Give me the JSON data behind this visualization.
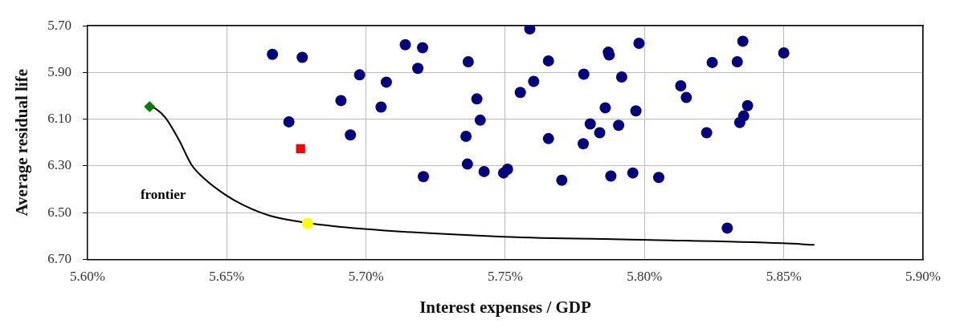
{
  "chart_data": {
    "type": "scatter",
    "xlabel": "Interest expenses / GDP",
    "ylabel": "Average residual life",
    "xlim": [
      5.6,
      5.9
    ],
    "xticks": [
      {
        "value": 5.6,
        "label": "5.60%"
      },
      {
        "value": 5.65,
        "label": "5.65%"
      },
      {
        "value": 5.7,
        "label": "5.70%"
      },
      {
        "value": 5.75,
        "label": "5.75%"
      },
      {
        "value": 5.8,
        "label": "5.80%"
      },
      {
        "value": 5.85,
        "label": "5.85%"
      },
      {
        "value": 5.9,
        "label": "5.90%"
      }
    ],
    "ylim": [
      6.7,
      5.7
    ],
    "yticks": [
      {
        "value": 5.7,
        "label": "5.70"
      },
      {
        "value": 5.9,
        "label": "5.90"
      },
      {
        "value": 6.1,
        "label": "6.10"
      },
      {
        "value": 6.3,
        "label": "6.30"
      },
      {
        "value": 6.5,
        "label": "6.50"
      },
      {
        "value": 6.7,
        "label": "6.70"
      }
    ],
    "grid": true,
    "legend": false,
    "series": [
      {
        "type": "line",
        "name": "frontier",
        "color": "#000000",
        "marker": "none",
        "line_style": "solid",
        "x": [
          5.6223,
          5.6245,
          5.628,
          5.6328,
          5.6373,
          5.6421,
          5.6497,
          5.6562,
          5.6655,
          5.6791,
          5.6986,
          5.7494,
          5.7994,
          5.8497,
          5.861
        ],
        "values": [
          6.046,
          6.055,
          6.094,
          6.188,
          6.294,
          6.356,
          6.425,
          6.469,
          6.513,
          6.544,
          6.569,
          6.603,
          6.616,
          6.631,
          6.638
        ]
      },
      {
        "type": "scatter",
        "color": "#000080",
        "marker": "circle",
        "x": [
          5.6664,
          5.6771,
          5.7141,
          5.7203,
          5.7186,
          5.7367,
          5.6977,
          5.7073,
          5.691,
          5.7054,
          5.6723,
          5.6944,
          5.7398,
          5.741,
          5.7359,
          5.7588,
          5.7655,
          5.7602,
          5.7554,
          5.7364,
          5.7424,
          5.7206,
          5.7494,
          5.7508,
          5.7703,
          5.7655,
          5.7782,
          5.778,
          5.7805,
          5.7839,
          5.7859,
          5.787,
          5.7873,
          5.7918,
          5.7907,
          5.7969,
          5.798,
          5.7879,
          5.7958,
          5.8051,
          5.813,
          5.815,
          5.8223,
          5.8243,
          5.8333,
          5.8353,
          5.85,
          5.837,
          5.8356,
          5.8342,
          5.8297
        ],
        "values": [
          5.822,
          5.835,
          5.781,
          5.794,
          5.882,
          5.854,
          5.91,
          5.941,
          6.02,
          6.048,
          6.111,
          6.167,
          6.013,
          6.104,
          6.173,
          5.713,
          5.85,
          5.938,
          5.985,
          6.292,
          6.324,
          6.346,
          6.33,
          6.314,
          6.361,
          6.183,
          5.907,
          6.205,
          6.12,
          6.158,
          6.051,
          5.813,
          5.825,
          5.919,
          6.126,
          6.064,
          5.775,
          6.343,
          6.33,
          6.349,
          5.957,
          6.007,
          6.158,
          5.857,
          5.854,
          5.766,
          5.816,
          6.042,
          6.086,
          6.114,
          6.566
        ]
      },
      {
        "type": "scatter",
        "color": "#ff0000",
        "marker": "square",
        "x": [
          5.6765
        ],
        "values": [
          6.226
        ]
      },
      {
        "type": "scatter",
        "color": "#008000",
        "marker": "diamond",
        "x": [
          5.6223
        ],
        "values": [
          6.046
        ]
      },
      {
        "type": "scatter",
        "color": "#ffff00",
        "marker": "circle",
        "x": [
          5.679
        ],
        "values": [
          6.546
        ]
      }
    ]
  }
}
